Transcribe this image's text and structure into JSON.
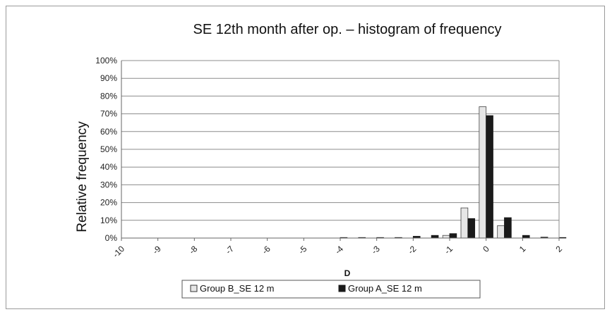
{
  "chart_data": {
    "type": "bar",
    "title": "SE 12th month after op. – histogram of frequency",
    "xlabel": "D",
    "ylabel": "Relative frequency",
    "ylim": [
      0,
      100
    ],
    "y_ticks": [
      "0%",
      "10%",
      "20%",
      "30%",
      "40%",
      "50%",
      "60%",
      "70%",
      "80%",
      "90%",
      "100%"
    ],
    "x_tick_labels": [
      "-10",
      "-9",
      "-8",
      "-7",
      "-6",
      "-5",
      "-4",
      "-3",
      "-2",
      "-1",
      "0",
      "1",
      "2"
    ],
    "x": [
      -10,
      -9.5,
      -9,
      -8.5,
      -8,
      -7.5,
      -7,
      -6.5,
      -6,
      -5.5,
      -5,
      -4.5,
      -4,
      -3.5,
      -3,
      -2.5,
      -2,
      -1.5,
      -1,
      -0.5,
      0,
      0.5,
      1,
      1.5,
      2
    ],
    "series": [
      {
        "name": "Group B_SE 12 m",
        "color": "#e6e6e6",
        "values": [
          0,
          0,
          0,
          0,
          0,
          0,
          0,
          0,
          0,
          0,
          0,
          0,
          0,
          0,
          0,
          0,
          0,
          0,
          1.5,
          17,
          74,
          7,
          0,
          0,
          0
        ]
      },
      {
        "name": "Group A_SE 12 m",
        "color": "#1a1a1a",
        "values": [
          0,
          0,
          0,
          0,
          0,
          0,
          0,
          0,
          0,
          0,
          0,
          0,
          0.3,
          0.3,
          0.3,
          0.3,
          1,
          1.5,
          2.5,
          11,
          69,
          11.5,
          1.5,
          0.5,
          0.3
        ]
      }
    ],
    "grid": true,
    "legend_position": "bottom"
  }
}
